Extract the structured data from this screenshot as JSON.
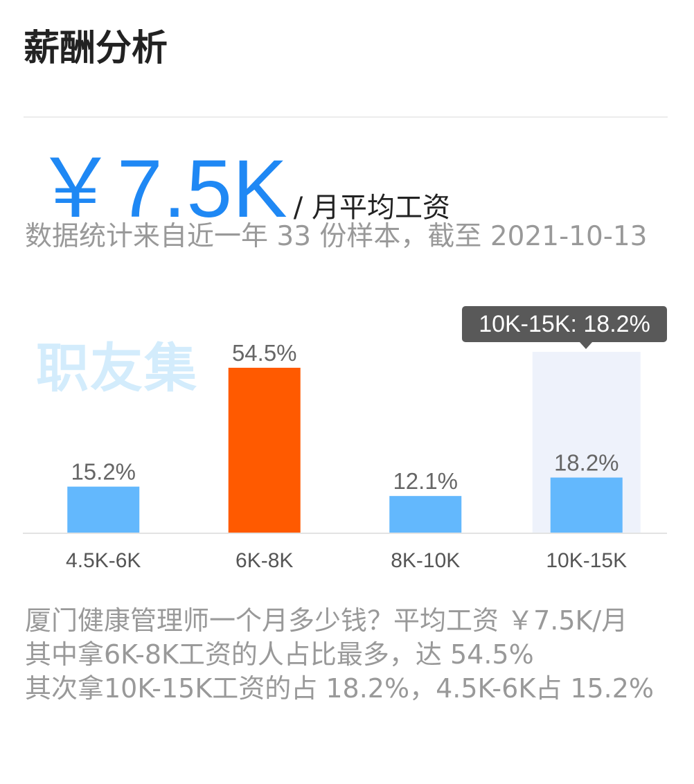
{
  "title": "薪酬分析",
  "salary": {
    "amount": "￥7.5K",
    "unit": "/ 月平均工资"
  },
  "sample_note": "数据统计来自近一年 33 份样本，截至 2021-10-13",
  "watermark": "职友集",
  "tooltip": "10K-15K: 18.2%",
  "chart_data": {
    "type": "bar",
    "categories": [
      "4.5K-6K",
      "6K-8K",
      "8K-10K",
      "10K-15K"
    ],
    "values": [
      15.2,
      54.5,
      12.1,
      18.2
    ],
    "value_labels": [
      "15.2%",
      "54.5%",
      "12.1%",
      "18.2%"
    ],
    "unit": "%",
    "highlight_max_color": "#ff5a00",
    "bar_color": "#63b8fd",
    "hover_category": "10K-15K",
    "hover_band_color": "#eef2fb",
    "axis_color": "#e3e3e3",
    "ylim": [
      0,
      54.5
    ],
    "grid": false,
    "legend": "none"
  },
  "summary": [
    "厦门健康管理师一个月多少钱？平均工资 ￥7.5K/月",
    "其中拿6K-8K工资的人占比最多，达 54.5%",
    "其次拿10K-15K工资的占 18.2%，4.5K-6K占 15.2%"
  ]
}
